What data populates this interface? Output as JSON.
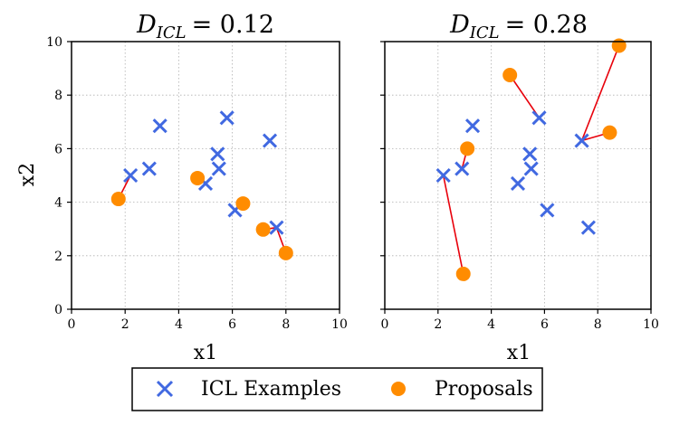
{
  "chart_data": [
    {
      "type": "scatter",
      "title_main": "D",
      "title_sub": "ICL",
      "title_value": "= 0.12",
      "xlabel": "x1",
      "ylabel": "x2",
      "xlim": [
        0,
        10
      ],
      "ylim": [
        0,
        10
      ],
      "xticks": [
        0,
        2,
        4,
        6,
        8,
        10
      ],
      "yticks": [
        0,
        2,
        4,
        6,
        8,
        10
      ],
      "grid": true,
      "icl_examples": [
        [
          2.2,
          5.0
        ],
        [
          2.9,
          5.25
        ],
        [
          3.3,
          6.85
        ],
        [
          5.0,
          4.7
        ],
        [
          5.45,
          5.8
        ],
        [
          5.5,
          5.25
        ],
        [
          5.8,
          7.15
        ],
        [
          6.1,
          3.7
        ],
        [
          7.4,
          6.3
        ],
        [
          7.65,
          3.05
        ]
      ],
      "proposals": [
        [
          1.75,
          4.12
        ],
        [
          4.7,
          4.9
        ],
        [
          6.4,
          3.95
        ],
        [
          7.15,
          2.98
        ],
        [
          8.0,
          2.1
        ]
      ],
      "links": [
        [
          [
            2.2,
            5.0
          ],
          [
            1.75,
            4.12
          ]
        ],
        [
          [
            5.0,
            4.7
          ],
          [
            4.7,
            4.9
          ]
        ],
        [
          [
            6.1,
            3.7
          ],
          [
            6.4,
            3.95
          ]
        ],
        [
          [
            7.65,
            3.05
          ],
          [
            7.15,
            2.98
          ]
        ],
        [
          [
            7.65,
            3.05
          ],
          [
            8.0,
            2.1
          ]
        ]
      ]
    },
    {
      "type": "scatter",
      "title_main": "D",
      "title_sub": "ICL",
      "title_value": "= 0.28",
      "xlabel": "x1",
      "ylabel": "",
      "xlim": [
        0,
        10
      ],
      "ylim": [
        0,
        10
      ],
      "xticks": [
        0,
        2,
        4,
        6,
        8,
        10
      ],
      "yticks": [
        0,
        2,
        4,
        6,
        8,
        10
      ],
      "grid": true,
      "icl_examples": [
        [
          2.2,
          5.0
        ],
        [
          2.9,
          5.25
        ],
        [
          3.3,
          6.85
        ],
        [
          5.0,
          4.7
        ],
        [
          5.45,
          5.8
        ],
        [
          5.5,
          5.25
        ],
        [
          5.8,
          7.15
        ],
        [
          6.1,
          3.7
        ],
        [
          7.4,
          6.3
        ],
        [
          7.65,
          3.05
        ]
      ],
      "proposals": [
        [
          2.95,
          1.32
        ],
        [
          3.1,
          6.0
        ],
        [
          4.7,
          8.75
        ],
        [
          8.45,
          6.6
        ],
        [
          8.8,
          9.85
        ]
      ],
      "links": [
        [
          [
            2.2,
            5.0
          ],
          [
            2.95,
            1.32
          ]
        ],
        [
          [
            2.9,
            5.25
          ],
          [
            3.1,
            6.0
          ]
        ],
        [
          [
            5.8,
            7.15
          ],
          [
            4.7,
            8.75
          ]
        ],
        [
          [
            7.4,
            6.3
          ],
          [
            8.45,
            6.6
          ]
        ],
        [
          [
            7.4,
            6.3
          ],
          [
            8.8,
            9.85
          ]
        ]
      ]
    }
  ],
  "legend": {
    "items": [
      {
        "label": "ICL Examples",
        "marker": "x",
        "color": "#4169e1"
      },
      {
        "label": "Proposals",
        "marker": "o",
        "color": "#ff8c00"
      }
    ],
    "placement": "bottom-center"
  },
  "colors": {
    "icl": "#4169e1",
    "proposal": "#ff8c00",
    "link": "#e8000b",
    "grid": "#b0b0b0"
  }
}
